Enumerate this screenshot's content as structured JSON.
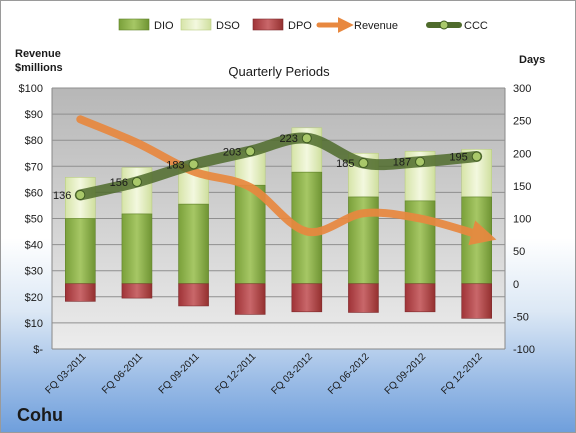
{
  "company": "Cohu",
  "chart_data": {
    "type": "bar",
    "title": "Quarterly Periods",
    "left_axis_label": [
      "Revenue",
      "$millions"
    ],
    "right_axis_label": "Days",
    "categories": [
      "FQ 03-2011",
      "FQ 06-2011",
      "FQ 09-2011",
      "FQ 12-2011",
      "FQ 03-2012",
      "FQ 06-2012",
      "FQ 09-2012",
      "FQ 12-2012"
    ],
    "left_axis": {
      "min": 0,
      "max": 100,
      "step": 10,
      "tick_labels": [
        "$-",
        "$10",
        "$20",
        "$30",
        "$40",
        "$50",
        "$60",
        "$70",
        "$80",
        "$90",
        "$100"
      ]
    },
    "right_axis": {
      "min": -100,
      "max": 300,
      "step": 50,
      "tick_labels": [
        "-100",
        "-50",
        "0",
        "50",
        "100",
        "150",
        "200",
        "250",
        "300"
      ]
    },
    "legend": [
      "DIO",
      "DSO",
      "DPO",
      "Revenue",
      "CCC"
    ],
    "legend_position": "top",
    "series": [
      {
        "name": "DIO",
        "axis": "right",
        "color": "#8db14a",
        "values": [
          100,
          107,
          122,
          151,
          171,
          133,
          127,
          133
        ]
      },
      {
        "name": "DSO",
        "axis": "right",
        "color": "#e4eec5",
        "values": [
          63,
          71,
          57,
          52,
          68,
          67,
          76,
          73
        ]
      },
      {
        "name": "DPO",
        "axis": "right",
        "color": "#b5464a",
        "values": [
          -27,
          -22,
          -34,
          -47,
          -43,
          -44,
          -43,
          -53
        ]
      },
      {
        "name": "Revenue",
        "axis": "left",
        "color": "#e8883f",
        "values": [
          88,
          79,
          68,
          62,
          45,
          52,
          50,
          44
        ]
      },
      {
        "name": "CCC",
        "axis": "right",
        "color": "#4f6b2c",
        "values": [
          136,
          156,
          183,
          203,
          223,
          185,
          187,
          195
        ]
      }
    ],
    "ccc_labels": [
      "136",
      "156",
      "183",
      "203",
      "223",
      "185",
      "187",
      "195"
    ]
  }
}
